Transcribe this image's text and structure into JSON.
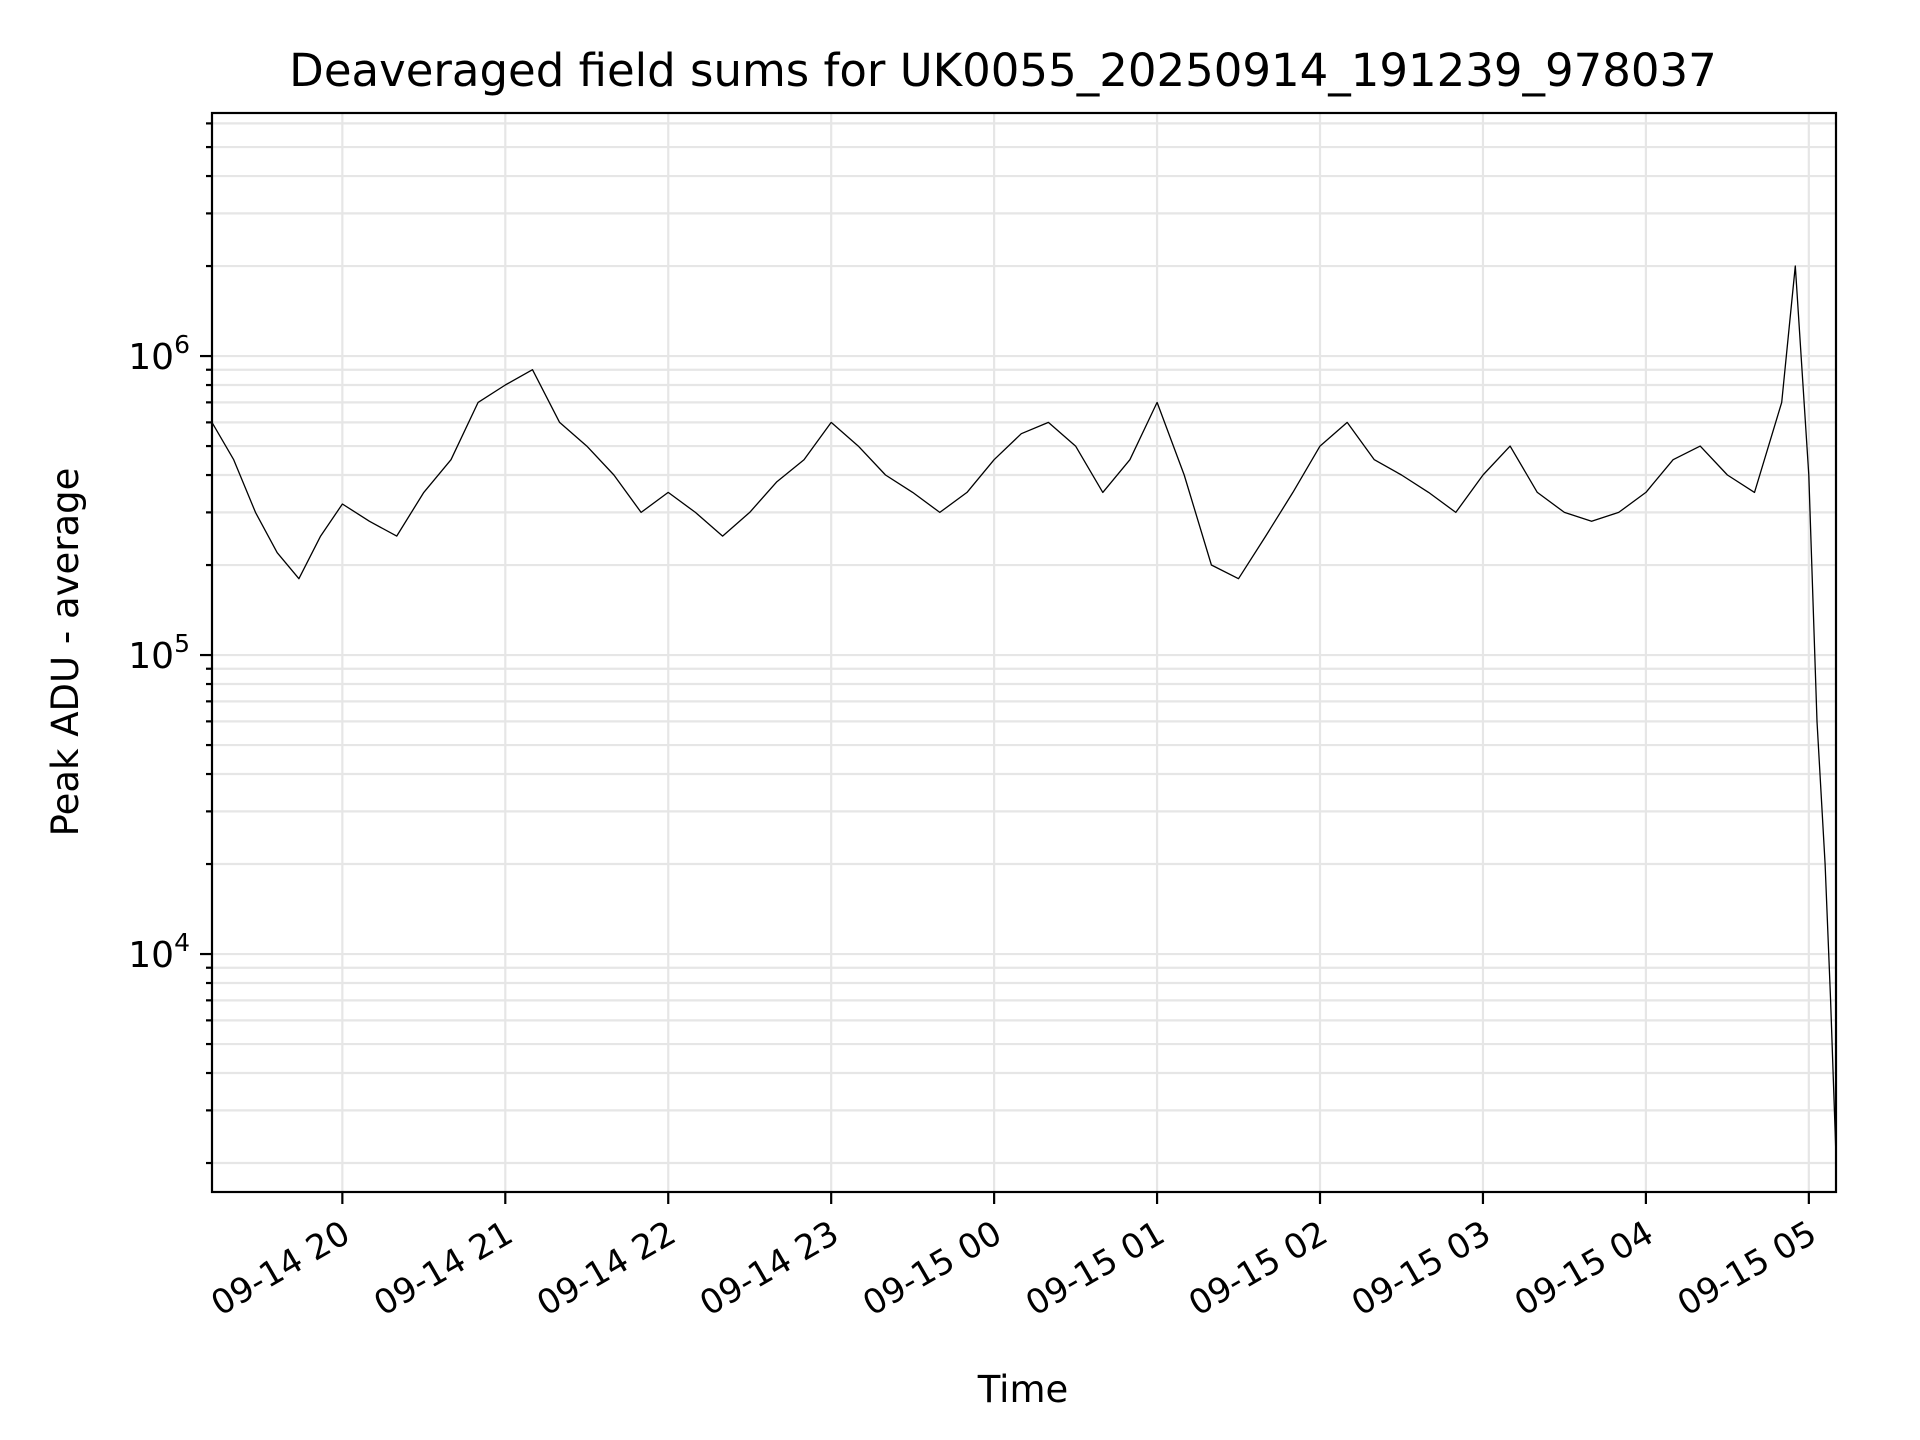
{
  "chart_data": {
    "type": "line",
    "title": "Deaveraged field sums for UK0055_20250914_191239_978037",
    "xlabel": "Time",
    "ylabel": "Peak ADU - average",
    "yscale": "log",
    "ylim": [
      1600,
      6500000
    ],
    "xlim": [
      "2025-09-14 19:12",
      "2025-09-15 05:10"
    ],
    "x_ticks": [
      {
        "t": "2025-09-14 20:00",
        "label": "09-14 20"
      },
      {
        "t": "2025-09-14 21:00",
        "label": "09-14 21"
      },
      {
        "t": "2025-09-14 22:00",
        "label": "09-14 22"
      },
      {
        "t": "2025-09-14 23:00",
        "label": "09-14 23"
      },
      {
        "t": "2025-09-15 00:00",
        "label": "09-15 00"
      },
      {
        "t": "2025-09-15 01:00",
        "label": "09-15 01"
      },
      {
        "t": "2025-09-15 02:00",
        "label": "09-15 02"
      },
      {
        "t": "2025-09-15 03:00",
        "label": "09-15 03"
      },
      {
        "t": "2025-09-15 04:00",
        "label": "09-15 04"
      },
      {
        "t": "2025-09-15 05:00",
        "label": "09-15 05"
      }
    ],
    "y_ticks": [
      {
        "value": 10000,
        "base": "10",
        "exp": "4"
      },
      {
        "value": 100000,
        "base": "10",
        "exp": "5"
      },
      {
        "value": 1000000,
        "base": "10",
        "exp": "6"
      }
    ],
    "grid": true,
    "legend": "none",
    "line_color": "#000000",
    "series": [
      {
        "x": [
          "2025-09-14 19:12",
          "2025-09-14 19:20",
          "2025-09-14 19:28",
          "2025-09-14 19:36",
          "2025-09-14 19:44",
          "2025-09-14 19:52",
          "2025-09-14 20:00",
          "2025-09-14 20:10",
          "2025-09-14 20:20",
          "2025-09-14 20:30",
          "2025-09-14 20:40",
          "2025-09-14 20:50",
          "2025-09-14 21:00",
          "2025-09-14 21:10",
          "2025-09-14 21:20",
          "2025-09-14 21:30",
          "2025-09-14 21:40",
          "2025-09-14 21:50",
          "2025-09-14 22:00",
          "2025-09-14 22:10",
          "2025-09-14 22:20",
          "2025-09-14 22:30",
          "2025-09-14 22:40",
          "2025-09-14 22:50",
          "2025-09-14 23:00",
          "2025-09-14 23:10",
          "2025-09-14 23:20",
          "2025-09-14 23:30",
          "2025-09-14 23:40",
          "2025-09-14 23:50",
          "2025-09-15 00:00",
          "2025-09-15 00:10",
          "2025-09-15 00:20",
          "2025-09-15 00:30",
          "2025-09-15 00:40",
          "2025-09-15 00:50",
          "2025-09-15 01:00",
          "2025-09-15 01:10",
          "2025-09-15 01:20",
          "2025-09-15 01:30",
          "2025-09-15 01:40",
          "2025-09-15 01:50",
          "2025-09-15 02:00",
          "2025-09-15 02:10",
          "2025-09-15 02:20",
          "2025-09-15 02:30",
          "2025-09-15 02:40",
          "2025-09-15 02:50",
          "2025-09-15 03:00",
          "2025-09-15 03:10",
          "2025-09-15 03:20",
          "2025-09-15 03:30",
          "2025-09-15 03:40",
          "2025-09-15 03:50",
          "2025-09-15 04:00",
          "2025-09-15 04:10",
          "2025-09-15 04:20",
          "2025-09-15 04:30",
          "2025-09-15 04:40",
          "2025-09-15 04:50",
          "2025-09-15 04:55",
          "2025-09-15 05:00",
          "2025-09-15 05:03",
          "2025-09-15 05:06",
          "2025-09-15 05:08",
          "2025-09-15 05:10"
        ],
        "y": [
          600000,
          450000,
          300000,
          220000,
          180000,
          250000,
          320000,
          280000,
          250000,
          350000,
          450000,
          700000,
          800000,
          900000,
          600000,
          500000,
          400000,
          300000,
          350000,
          300000,
          250000,
          300000,
          380000,
          450000,
          600000,
          500000,
          400000,
          350000,
          300000,
          350000,
          450000,
          550000,
          600000,
          500000,
          350000,
          450000,
          700000,
          400000,
          200000,
          180000,
          250000,
          350000,
          500000,
          600000,
          450000,
          400000,
          350000,
          300000,
          400000,
          500000,
          350000,
          300000,
          280000,
          300000,
          350000,
          450000,
          500000,
          400000,
          350000,
          700000,
          2000000,
          400000,
          60000,
          20000,
          7000,
          2100
        ]
      }
    ]
  }
}
